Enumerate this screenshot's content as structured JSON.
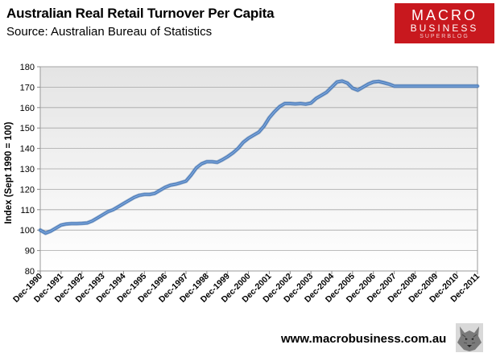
{
  "header": {
    "title": "Australian Real Retail Turnover Per Capita",
    "subtitle": "Source: Australian Bureau of Statistics"
  },
  "logo": {
    "line1": "MACRO",
    "line2": "BUSINESS",
    "line3": "SUPERBLOG",
    "background_color": "#c8181e",
    "mascot_icon": "wolf-icon"
  },
  "footer": {
    "url": "www.macrobusiness.com.au"
  },
  "chart_data": {
    "type": "line",
    "title": "Australian Real Retail Turnover Per Capita",
    "subtitle": "Source: Australian Bureau of Statistics",
    "xlabel": "",
    "ylabel": "Index (Sept 1990  = 100)",
    "ylim": [
      80,
      180
    ],
    "yticks": [
      80,
      90,
      100,
      110,
      120,
      130,
      140,
      150,
      160,
      170,
      180
    ],
    "xticks": [
      "Dec-1990",
      "Dec-1991",
      "Dec-1992",
      "Dec-1993",
      "Dec-1994",
      "Dec-1995",
      "Dec-1996",
      "Dec-1997",
      "Dec-1998",
      "Dec-1999",
      "Dec-2000",
      "Dec-2001",
      "Dec-2002",
      "Dec-2003",
      "Dec-2004",
      "Dec-2005",
      "Dec-2006",
      "Dec-2007",
      "Dec-2008",
      "Dec-2009",
      "Dec-2010",
      "Dec-2011"
    ],
    "grid": true,
    "legend": "none",
    "plot_background": "gradient-light-grey",
    "series": [
      {
        "color": "#4a7dbf",
        "x": [
          1990.75,
          1991.0,
          1991.25,
          1991.5,
          1991.75,
          1992.0,
          1992.25,
          1992.5,
          1992.75,
          1993.0,
          1993.25,
          1993.5,
          1993.75,
          1994.0,
          1994.25,
          1994.5,
          1994.75,
          1995.0,
          1995.25,
          1995.5,
          1995.75,
          1996.0,
          1996.25,
          1996.5,
          1996.75,
          1997.0,
          1997.25,
          1997.5,
          1997.75,
          1998.0,
          1998.25,
          1998.5,
          1998.75,
          1999.0,
          1999.25,
          1999.5,
          1999.75,
          2000.0,
          2000.25,
          2000.5,
          2000.75,
          2001.0,
          2001.25,
          2001.5,
          2001.75,
          2002.0,
          2002.25,
          2002.5,
          2002.75,
          2003.0,
          2003.25,
          2003.5,
          2003.75,
          2004.0,
          2004.25,
          2004.5,
          2004.75,
          2005.0,
          2005.25,
          2005.5,
          2005.75,
          2006.0,
          2006.25,
          2006.5,
          2006.75,
          2007.0,
          2007.25,
          2007.5,
          2007.75,
          2008.0,
          2008.25,
          2008.5,
          2008.75,
          2009.0,
          2009.25,
          2009.5,
          2009.75,
          2010.0,
          2010.25,
          2010.5,
          2010.75,
          2011.0,
          2011.25,
          2011.5,
          2011.75
        ],
        "values": [
          100,
          98.5,
          99.5,
          101,
          102.5,
          103,
          103.2,
          103.2,
          103.3,
          103.5,
          104.5,
          106,
          107.5,
          109,
          110,
          111.5,
          113,
          114.5,
          116,
          117,
          117.5,
          117.5,
          118,
          119.5,
          121,
          122,
          122.5,
          123.2,
          124,
          127,
          130.5,
          132.5,
          133.5,
          133.5,
          133.2,
          134.5,
          136,
          137.8,
          140,
          143,
          145,
          146.5,
          148,
          151,
          155,
          158,
          160.5,
          162,
          162,
          161.8,
          162,
          161.7,
          162.2,
          164.5,
          166,
          167.5,
          170,
          172.5,
          173,
          172,
          169.5,
          168.5,
          170,
          171.5,
          172.5,
          172.8,
          172.2,
          171.5,
          170.5,
          170.5,
          170.5,
          170.5,
          170.5,
          170.5,
          170.5,
          170.5,
          170.5,
          170.5,
          170.5,
          170.5,
          170.5,
          170.5,
          170.5,
          170.5,
          170.5
        ]
      }
    ]
  }
}
